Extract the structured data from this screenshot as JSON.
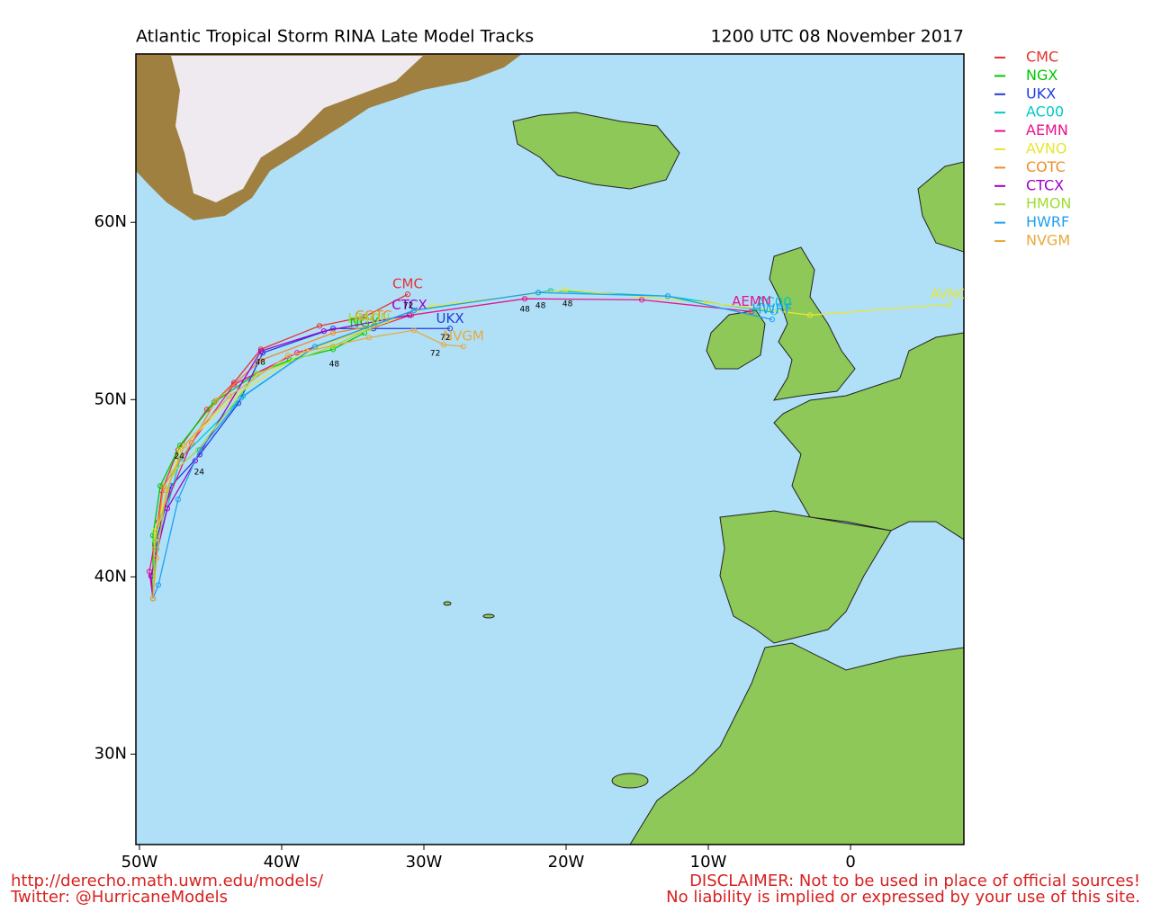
{
  "chart_data": {
    "type": "track",
    "title": "Atlantic Tropical Storm RINA Late Model Tracks",
    "subtitle": "1200 UTC 08 November 2017",
    "xlim": [
      -50.25,
      7.97
    ],
    "ylim": [
      24.9,
      69.5
    ],
    "xticks": [
      {
        "value": -50,
        "label": "50W"
      },
      {
        "value": -40,
        "label": "40W"
      },
      {
        "value": -30,
        "label": "30W"
      },
      {
        "value": -20,
        "label": "20W"
      },
      {
        "value": -10,
        "label": "10W"
      },
      0
    ],
    "yticks": [
      {
        "value": 30,
        "label": "30N"
      },
      {
        "value": 40,
        "label": "40N"
      },
      {
        "value": 50,
        "label": "50N"
      },
      {
        "value": 60,
        "label": "60N"
      }
    ],
    "series": [
      {
        "name": "CMC",
        "color": "#e83030",
        "x": [
          -49.05,
          -48.92,
          -48.42,
          -47.28,
          -45.25,
          -43.35,
          -41.46,
          -37.34,
          -34.18,
          -31.14
        ],
        "values": [
          38.78,
          41.83,
          44.87,
          47.16,
          49.44,
          50.96,
          52.84,
          54.16,
          54.67,
          55.94
        ]
      },
      {
        "name": "NGX",
        "color": "#00c800",
        "x": [
          -49.05,
          -49.05,
          -48.54,
          -47.15,
          -44.75,
          -41.77,
          -39.43,
          -36.39,
          -34.18
        ],
        "values": [
          38.78,
          42.34,
          45.13,
          47.41,
          49.85,
          51.47,
          52.23,
          52.84,
          53.76
        ]
      },
      {
        "name": "UKX",
        "color": "#1e3cdc",
        "x": [
          -49.05,
          -48.8,
          -47.78,
          -45.76,
          -43.04,
          -41.33,
          -36.39,
          -33.54,
          -28.16
        ],
        "values": [
          38.78,
          42.08,
          45.13,
          46.9,
          49.8,
          52.64,
          54.01,
          54.01,
          54.01
        ]
      },
      {
        "name": "AC00",
        "color": "#00c8c8",
        "x": [
          -49.05,
          -48.8,
          -47.15,
          -42.72,
          -37.66,
          -30.7,
          -21.96,
          -21.08,
          -12.85,
          -5.38
        ],
        "values": [
          38.78,
          41.57,
          46.65,
          50.2,
          52.99,
          55.03,
          56.04,
          56.14,
          55.84,
          54.92
        ]
      },
      {
        "name": "AEMN",
        "color": "#e6148c",
        "x": [
          -49.05,
          -49.3,
          -48.67,
          -46.33,
          -43.35,
          -38.92,
          -30.89,
          -22.91,
          -14.68,
          -6.96
        ],
        "values": [
          38.78,
          40.3,
          43.1,
          47.56,
          50.86,
          52.64,
          54.77,
          55.69,
          55.63,
          54.97
        ]
      },
      {
        "name": "AVNO",
        "color": "#e6e632",
        "x": [
          -49.05,
          -48.92,
          -47.15,
          -43.35,
          -38.29,
          -29.43,
          -20.06,
          -10.13,
          -2.85,
          6.96
        ],
        "values": [
          38.78,
          42.59,
          47.16,
          50.2,
          52.74,
          55.28,
          56.19,
          55.48,
          54.77,
          55.38
        ]
      },
      {
        "name": "COTC",
        "color": "#f08c28",
        "x": [
          -49.05,
          -48.92,
          -48.29,
          -46.33,
          -44.62,
          -41.46,
          -36.39,
          -33.54
        ],
        "values": [
          38.78,
          41.57,
          45.13,
          47.56,
          49.95,
          52.23,
          53.76,
          54.16
        ]
      },
      {
        "name": "CTCX",
        "color": "#a000c8",
        "x": [
          -49.05,
          -49.18,
          -48.04,
          -46.08,
          -41.46,
          -37.03,
          -31.01
        ],
        "values": [
          38.78,
          40.05,
          43.86,
          46.55,
          52.74,
          53.86,
          54.77
        ]
      },
      {
        "name": "HMON",
        "color": "#a0dc32",
        "x": [
          -49.05,
          -48.92,
          -47.66,
          -45.89,
          -41.77,
          -36.39,
          -33.86
        ],
        "values": [
          38.78,
          42.08,
          45.89,
          47.16,
          51.47,
          53.0,
          54.01
        ]
      },
      {
        "name": "HWRF",
        "color": "#1ea0f0",
        "x": [
          -49.05,
          -48.67,
          -47.28,
          -45.76,
          -42.85,
          -37.66,
          -30.7,
          -21.96,
          -12.85,
          -5.51
        ],
        "values": [
          38.78,
          39.54,
          44.37,
          47.16,
          50.1,
          52.99,
          55.03,
          56.04,
          55.84,
          54.52
        ]
      },
      {
        "name": "NVGM",
        "color": "#e6aa3c",
        "x": [
          -49.05,
          -48.8,
          -48.1,
          -46.84,
          -43.67,
          -39.56,
          -33.86,
          -30.7,
          -28.61,
          -27.22
        ],
        "values": [
          38.78,
          41.07,
          44.87,
          47.41,
          50.2,
          52.49,
          53.5,
          53.91,
          53.1,
          53.0
        ]
      }
    ],
    "hour_labels": [
      {
        "text": "24",
        "lon": -47.2,
        "lat": 46.8
      },
      {
        "text": "24",
        "lon": -45.8,
        "lat": 45.9
      },
      {
        "text": "48",
        "lon": -41.5,
        "lat": 52.1
      },
      {
        "text": "48",
        "lon": -36.3,
        "lat": 52.0
      },
      {
        "text": "72",
        "lon": -31.1,
        "lat": 55.3
      },
      {
        "text": "72",
        "lon": -28.5,
        "lat": 53.5
      },
      {
        "text": "72",
        "lon": -29.2,
        "lat": 52.6
      },
      {
        "text": "48",
        "lon": -22.9,
        "lat": 55.1
      },
      {
        "text": "48",
        "lon": -21.8,
        "lat": 55.3
      },
      {
        "text": "48",
        "lon": -19.9,
        "lat": 55.4
      }
    ],
    "footer_left": [
      "http://derecho.math.uwm.edu/models/",
      "Twitter: @HurricaneModels"
    ],
    "footer_right": [
      "DISCLAIMER: Not to be used in place of official sources!",
      "No liability is implied or expressed by your use of this site."
    ]
  }
}
